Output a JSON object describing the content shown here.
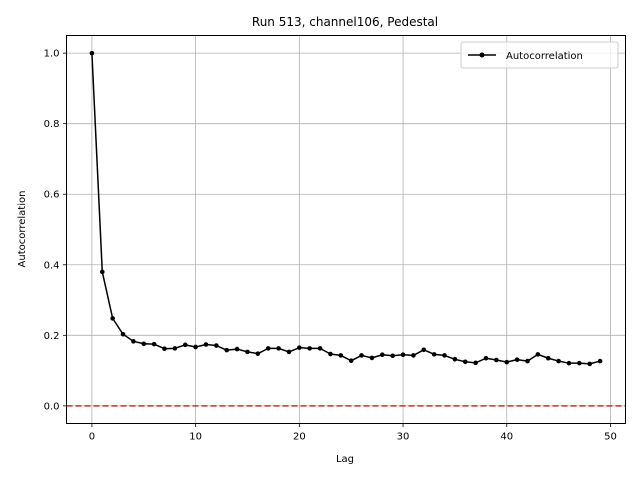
{
  "chart_data": {
    "type": "line",
    "title": "Run 513, channel106, Pedestal",
    "xlabel": "Lag",
    "ylabel": "Autocorrelation",
    "xlim": [
      -2.45,
      51.45
    ],
    "ylim": [
      -0.05,
      1.05
    ],
    "xticks": [
      0,
      10,
      20,
      30,
      40,
      50
    ],
    "yticks": [
      0.0,
      0.2,
      0.4,
      0.6,
      0.8,
      1.0
    ],
    "xtick_labels": [
      "0",
      "10",
      "20",
      "30",
      "40",
      "50"
    ],
    "ytick_labels": [
      "0.0",
      "0.2",
      "0.4",
      "0.6",
      "0.8",
      "1.0"
    ],
    "grid": true,
    "legend_position": "top-right",
    "series": [
      {
        "name": "Autocorrelation",
        "color": "#000000",
        "marker": "circle",
        "x": [
          0,
          1,
          2,
          3,
          4,
          5,
          6,
          7,
          8,
          9,
          10,
          11,
          12,
          13,
          14,
          15,
          16,
          17,
          18,
          19,
          20,
          21,
          22,
          23,
          24,
          25,
          26,
          27,
          28,
          29,
          30,
          31,
          32,
          33,
          34,
          35,
          36,
          37,
          38,
          39,
          40,
          41,
          42,
          43,
          44,
          45,
          46,
          47,
          48,
          49
        ],
        "y": [
          1.0,
          0.38,
          0.248,
          0.203,
          0.183,
          0.176,
          0.175,
          0.162,
          0.163,
          0.173,
          0.167,
          0.174,
          0.171,
          0.158,
          0.161,
          0.153,
          0.148,
          0.163,
          0.163,
          0.153,
          0.165,
          0.163,
          0.163,
          0.147,
          0.143,
          0.128,
          0.143,
          0.136,
          0.145,
          0.142,
          0.145,
          0.143,
          0.159,
          0.146,
          0.143,
          0.132,
          0.125,
          0.122,
          0.135,
          0.13,
          0.124,
          0.131,
          0.127,
          0.146,
          0.135,
          0.127,
          0.121,
          0.121,
          0.119,
          0.127
        ]
      }
    ],
    "reference_line": {
      "y": 0.0,
      "color": "#d62728",
      "style": "dashed"
    }
  }
}
